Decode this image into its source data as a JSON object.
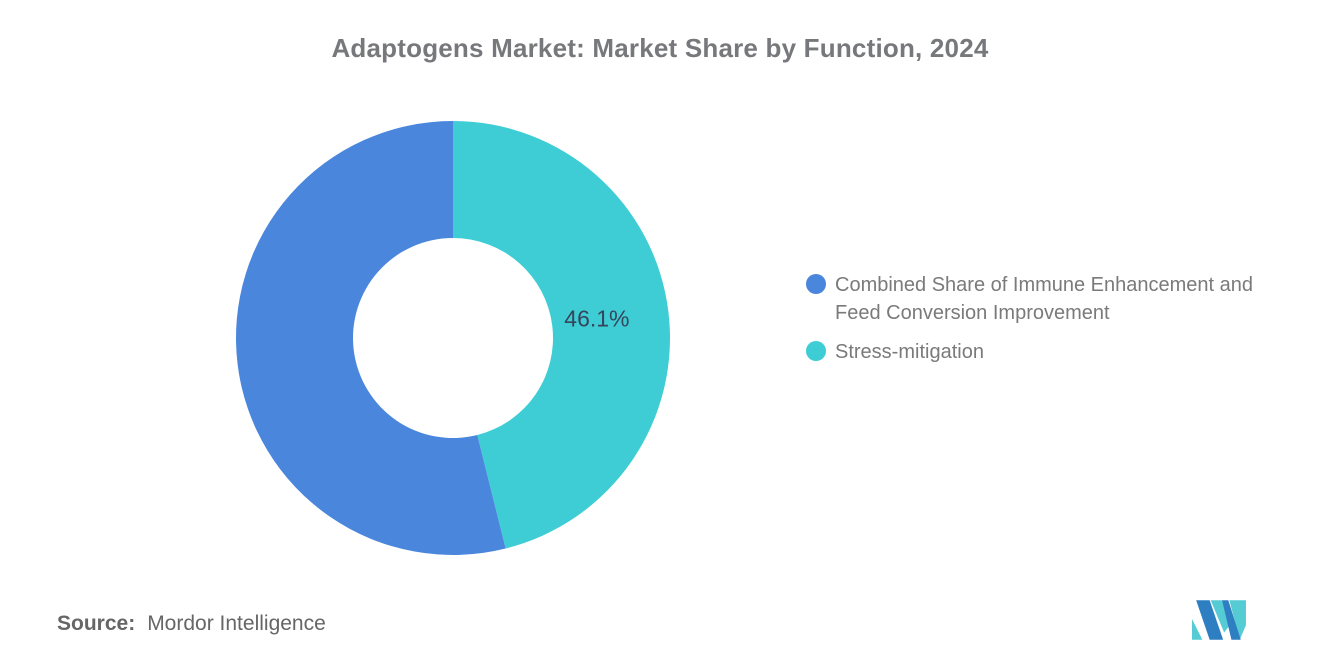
{
  "title": "Adaptogens Market: Market Share by Function, 2024",
  "chart_data": {
    "type": "pie",
    "subtype": "donut",
    "title": "Adaptogens Market: Market Share by Function, 2024",
    "unit": "%",
    "start_angle_deg": 0,
    "direction": "clockwise",
    "slices": [
      {
        "label": "Stress-mitigation",
        "value": 46.1,
        "color": "#3ECDD5",
        "data_label": "46.1%"
      },
      {
        "label": "Combined Share of Immune Enhancement and Feed Conversion Improvement",
        "value": 53.9,
        "color": "#4A86DC",
        "data_label": ""
      }
    ],
    "data_label_color": "#36455A",
    "legend_position": "right",
    "background": "#ffffff"
  },
  "legend": {
    "items": [
      {
        "label": "Combined Share of Immune Enhancement and Feed Conversion Improvement",
        "color": "#4A86DC"
      },
      {
        "label": "Stress-mitigation",
        "color": "#3ECDD5"
      }
    ]
  },
  "source": {
    "label": "Source:",
    "value": "Mordor Intelligence"
  },
  "logo": {
    "name": "mordor-intelligence-logo",
    "blue": "#2E7FC2",
    "teal": "#55CBD4"
  }
}
